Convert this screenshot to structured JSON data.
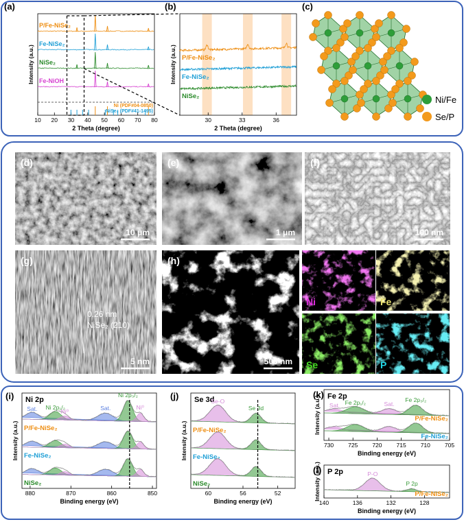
{
  "panel_a": {
    "label": "(a)",
    "xlabel": "2 Theta (degree)",
    "ylabel": "Intensity (a.u.)",
    "xlim": [
      10,
      80
    ],
    "xticks": [
      10,
      20,
      30,
      40,
      50,
      60,
      70,
      80
    ],
    "series": [
      {
        "name": "P/Fe-NiSe₂",
        "color": "#ee8e12",
        "peaks": [
          33.5,
          44.5,
          51.8,
          76.4
        ]
      },
      {
        "name": "Fe-NiSe₂",
        "color": "#1f9fd6",
        "peaks": [
          44.5,
          51.8,
          76.4
        ]
      },
      {
        "name": "NiSe₂",
        "color": "#2a8a2a",
        "peaks": [
          33.5,
          44.5,
          51.8,
          76.4
        ]
      },
      {
        "name": "Fe-NiOH",
        "color": "#d640d0",
        "peaks": [
          44.5,
          51.8,
          76.4
        ]
      }
    ],
    "references": [
      {
        "name": "Ni (PDF#04-0850)",
        "color": "#ee8e12",
        "peaks": [
          44.5,
          51.8,
          76.4
        ]
      },
      {
        "name": "NiSe₂ (PDF#41-1495)",
        "color": "#1f9fd6",
        "peaks": [
          29.9,
          33.5,
          36.9,
          40.5,
          50.5,
          55.4,
          58.0,
          74.5
        ]
      }
    ]
  },
  "panel_b": {
    "label": "(b)",
    "xlabel": "2 Theta (degree)",
    "ylabel": "Intensity (a.u.)",
    "xlim": [
      27.5,
      37.8
    ],
    "xticks": [
      30,
      33,
      36
    ],
    "highlights": [
      29.9,
      33.5,
      36.9
    ],
    "series": [
      {
        "name": "P/Fe-NiSe₂",
        "color": "#ee8e12"
      },
      {
        "name": "Fe-NiSe₂",
        "color": "#1f9fd6"
      },
      {
        "name": "NiSe₂",
        "color": "#2a8a2a"
      }
    ]
  },
  "panel_c": {
    "label": "(c)",
    "legend": [
      {
        "name": "Ni/Fe",
        "color": "#2e9e3a"
      },
      {
        "name": "Se/P",
        "color": "#f39a1c"
      }
    ]
  },
  "images": [
    {
      "label": "(d)",
      "scale_bar": "10 μm"
    },
    {
      "label": "(e)",
      "scale_bar": "1 μm"
    },
    {
      "label": "(f)",
      "scale_bar": "100 nm"
    },
    {
      "label": "(g)",
      "scale_bar": "5 nm",
      "annotation": [
        "0.26 nm",
        "NiSe₂ (210)"
      ]
    },
    {
      "label": "(h)",
      "scale_bar": "500 nm"
    }
  ],
  "maps": [
    {
      "name": "Ni",
      "color": "#e22ee2"
    },
    {
      "name": "Fe",
      "color": "#e8e070"
    },
    {
      "name": "Se",
      "color": "#44dd22"
    },
    {
      "name": "P",
      "color": "#22d8e8"
    }
  ],
  "panel_i": {
    "label": "(i)",
    "title": "Ni 2p",
    "xlabel": "Binding energy (eV)",
    "ylabel": "Intensity (a.u.)",
    "xlim": [
      882,
      849
    ],
    "xticks": [
      880,
      870,
      860,
      850
    ],
    "marker": 855.6,
    "components": [
      {
        "label": "Sat.",
        "center": 879.5,
        "color": "#5b7fe0"
      },
      {
        "label": "Ni 2p₁/₂",
        "center": 873.8,
        "color": "#3a9a3a"
      },
      {
        "label": "Ni⁰",
        "center": 871.5,
        "color": "#d58ad8"
      },
      {
        "label": "Sat.",
        "center": 861.5,
        "color": "#5b7fe0"
      },
      {
        "label": "Ni 2p₃/₂",
        "center": 856.0,
        "color": "#3a9a3a"
      },
      {
        "label": "Ni⁰",
        "center": 853.0,
        "color": "#d58ad8"
      }
    ],
    "spectra": [
      {
        "name": "P/Fe-NiSe₂",
        "color": "#ee8e12"
      },
      {
        "name": "Fe-NiSe₂",
        "color": "#1f9fd6"
      },
      {
        "name": "NiSe₂",
        "color": "#2a8a2a"
      }
    ]
  },
  "panel_j": {
    "label": "(j)",
    "title": "Se 3d",
    "xlabel": "Binding energy (eV)",
    "ylabel": "Intensity (a.u.)",
    "xlim": [
      62,
      50
    ],
    "xticks": [
      60,
      56,
      52
    ],
    "marker": 54.3,
    "components": [
      {
        "label": "Se-O",
        "center": 58.9,
        "color": "#d58ad8"
      },
      {
        "label": "Se 3d",
        "center": 54.5,
        "color": "#3a9a3a"
      }
    ],
    "spectra": [
      {
        "name": "P/Fe-NiSe₂",
        "color": "#ee8e12"
      },
      {
        "name": "Fe-NiSe₂",
        "color": "#1f9fd6"
      },
      {
        "name": "NiSe₂",
        "color": "#2a8a2a"
      }
    ]
  },
  "panel_k": {
    "label": "(k)",
    "title": "Fe 2p",
    "xlabel": "Binding energy (eV)",
    "ylabel": "Intensity (a.u.)",
    "xlim": [
      731,
      705
    ],
    "xticks": [
      730,
      725,
      720,
      715,
      710,
      705
    ],
    "components": [
      {
        "label": "Sat.",
        "center": 728.8,
        "color": "#d58ad8"
      },
      {
        "label": "Fe 2p₁/₂",
        "center": 724.5,
        "color": "#3a9a3a"
      },
      {
        "label": "Sat.",
        "center": 717.5,
        "color": "#d58ad8"
      },
      {
        "label": "Fe 2p₃/₂",
        "center": 712.0,
        "color": "#3a9a3a"
      }
    ],
    "spectra": [
      {
        "name": "P/Fe-NiSe₂",
        "color": "#ee8e12"
      },
      {
        "name": "Fe-NiSe₂",
        "color": "#1f9fd6"
      }
    ]
  },
  "panel_l": {
    "label": "(l)",
    "title": "P 2p",
    "xlabel": "Binding energy (eV)",
    "ylabel": "Intensity (a.u.)",
    "xlim": [
      140,
      125
    ],
    "xticks": [
      140,
      136,
      132,
      128
    ],
    "components": [
      {
        "label": "P-O",
        "center": 134.2,
        "color": "#d58ad8"
      },
      {
        "label": "P 2p",
        "center": 129.5,
        "color": "#3a9a3a"
      }
    ],
    "spectra": [
      {
        "name": "P/Fe-NiSe₂",
        "color": "#ee8e12"
      }
    ]
  }
}
